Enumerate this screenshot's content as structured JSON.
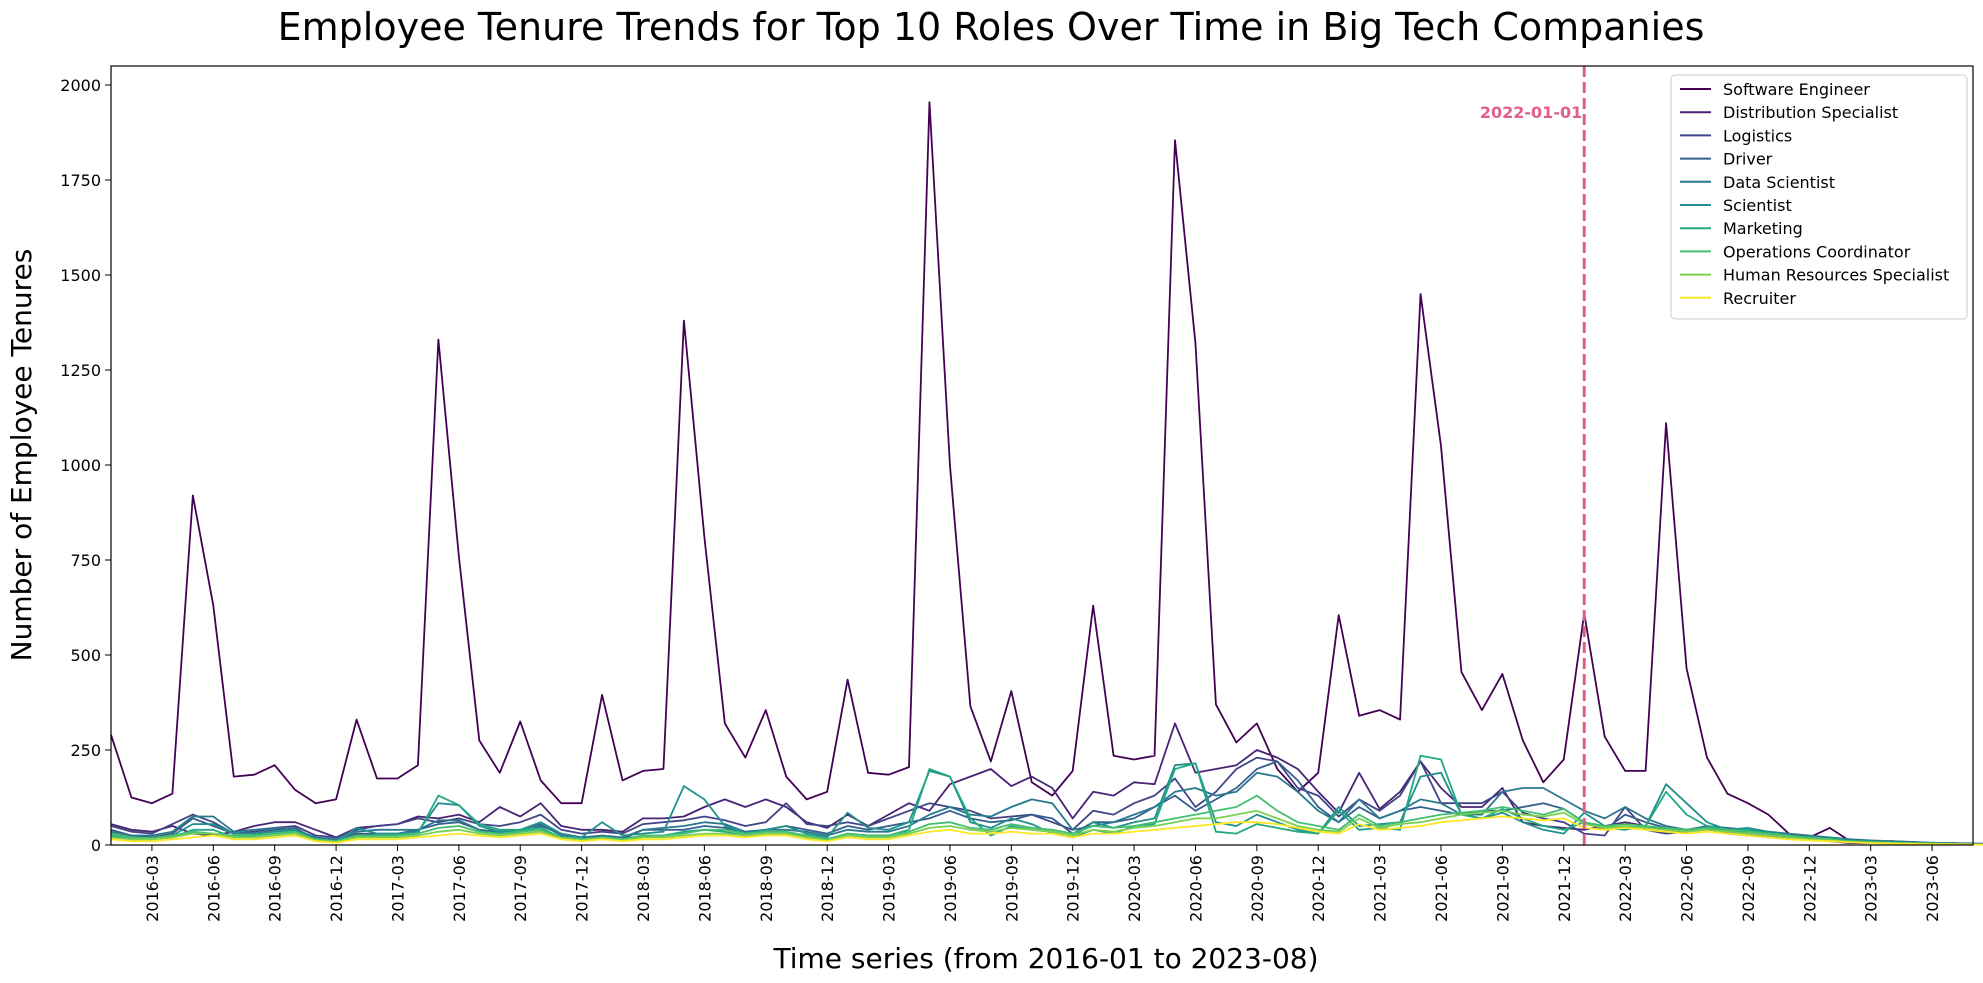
{
  "chart_data": {
    "type": "line",
    "title": "Employee Tenure Trends for Top 10 Roles Over Time in Big Tech Companies",
    "xlabel": "Time series (from 2016-01 to 2023-08)",
    "ylabel": "Number of Employee Tenures",
    "x_start": "2016-01",
    "x_end": "2023-08",
    "ylim": [
      0,
      2050
    ],
    "yticks": [
      0,
      250,
      500,
      750,
      1000,
      1250,
      1500,
      1750,
      2000
    ],
    "xticks": [
      "2016-03",
      "2016-06",
      "2016-09",
      "2016-12",
      "2017-03",
      "2017-06",
      "2017-09",
      "2017-12",
      "2018-03",
      "2018-06",
      "2018-09",
      "2018-12",
      "2019-03",
      "2019-06",
      "2019-09",
      "2019-12",
      "2020-03",
      "2020-06",
      "2020-09",
      "2020-12",
      "2021-03",
      "2021-06",
      "2021-09",
      "2021-12",
      "2022-03",
      "2022-06",
      "2022-09",
      "2022-12",
      "2023-03",
      "2023-06"
    ],
    "legend_position": "top-right",
    "grid": false,
    "annotation": {
      "x": "2022-01",
      "label": "2022-01-01",
      "color": "#e0608a"
    },
    "series": [
      {
        "name": "Software Engineer",
        "color": "#440154",
        "values": [
          290,
          125,
          110,
          135,
          920,
          630,
          180,
          185,
          210,
          145,
          110,
          120,
          330,
          175,
          175,
          210,
          1330,
          760,
          275,
          190,
          325,
          170,
          110,
          110,
          395,
          170,
          195,
          200,
          1380,
          810,
          320,
          230,
          355,
          180,
          120,
          140,
          435,
          190,
          185,
          205,
          1955,
          1000,
          365,
          220,
          405,
          165,
          130,
          195,
          630,
          235,
          225,
          235,
          1855,
          1320,
          370,
          270,
          320,
          200,
          140,
          190,
          605,
          340,
          355,
          330,
          1450,
          1050,
          455,
          355,
          450,
          275,
          165,
          225,
          610,
          285,
          195,
          195,
          1110,
          465,
          230,
          135,
          110,
          80,
          30,
          20,
          45,
          10,
          10,
          8,
          5,
          5,
          3,
          2
        ]
      },
      {
        "name": "Distribution Specialist",
        "color": "#482475",
        "values": [
          55,
          40,
          35,
          50,
          30,
          25,
          35,
          50,
          60,
          60,
          40,
          20,
          45,
          50,
          55,
          75,
          70,
          80,
          60,
          100,
          75,
          110,
          50,
          40,
          40,
          35,
          70,
          70,
          75,
          100,
          120,
          100,
          120,
          100,
          60,
          45,
          80,
          50,
          80,
          110,
          90,
          160,
          180,
          200,
          155,
          180,
          150,
          70,
          140,
          130,
          165,
          160,
          320,
          190,
          200,
          210,
          250,
          230,
          200,
          140,
          85,
          190,
          95,
          140,
          220,
          150,
          100,
          100,
          150,
          60,
          50,
          45,
          40,
          50,
          60,
          50,
          40,
          35,
          50,
          30,
          25,
          20,
          20,
          15,
          10,
          5,
          5,
          10,
          8,
          5,
          5,
          4,
          3,
          2
        ]
      },
      {
        "name": "Logistics",
        "color": "#414487",
        "values": [
          50,
          35,
          30,
          55,
          80,
          60,
          30,
          35,
          45,
          50,
          25,
          20,
          40,
          50,
          55,
          70,
          60,
          70,
          55,
          50,
          60,
          80,
          40,
          30,
          35,
          30,
          55,
          60,
          65,
          75,
          65,
          50,
          60,
          110,
          55,
          50,
          60,
          50,
          70,
          90,
          110,
          100,
          90,
          70,
          75,
          80,
          60,
          40,
          90,
          80,
          110,
          130,
          175,
          100,
          140,
          200,
          230,
          220,
          150,
          130,
          75,
          120,
          90,
          130,
          220,
          110,
          110,
          110,
          140,
          85,
          70,
          60,
          30,
          25,
          100,
          40,
          30,
          35,
          50,
          40,
          30,
          20,
          25,
          20,
          15,
          8,
          5,
          10,
          5,
          5,
          3,
          2,
          1,
          0
        ]
      },
      {
        "name": "Driver",
        "color": "#355f8d",
        "values": [
          40,
          25,
          20,
          30,
          70,
          50,
          30,
          30,
          40,
          45,
          15,
          10,
          30,
          30,
          30,
          40,
          55,
          60,
          40,
          30,
          35,
          50,
          30,
          20,
          20,
          15,
          40,
          40,
          40,
          50,
          45,
          30,
          40,
          50,
          40,
          30,
          50,
          40,
          50,
          60,
          70,
          90,
          70,
          60,
          65,
          80,
          70,
          30,
          60,
          60,
          70,
          100,
          130,
          90,
          120,
          150,
          200,
          220,
          170,
          100,
          60,
          100,
          70,
          90,
          100,
          90,
          80,
          90,
          90,
          100,
          110,
          95,
          60,
          40,
          80,
          60,
          45,
          40,
          45,
          35,
          30,
          25,
          20,
          15,
          12,
          10,
          8,
          6,
          5,
          4,
          3,
          2,
          1,
          0
        ]
      },
      {
        "name": "Data Scientist",
        "color": "#2a788e",
        "values": [
          35,
          25,
          25,
          35,
          75,
          75,
          35,
          40,
          45,
          40,
          20,
          15,
          35,
          40,
          40,
          40,
          65,
          65,
          40,
          35,
          40,
          55,
          25,
          20,
          25,
          20,
          40,
          45,
          50,
          60,
          55,
          35,
          40,
          40,
          35,
          25,
          40,
          35,
          35,
          50,
          80,
          100,
          80,
          75,
          100,
          120,
          110,
          40,
          50,
          60,
          80,
          100,
          140,
          150,
          130,
          140,
          190,
          180,
          140,
          90,
          60,
          120,
          70,
          90,
          120,
          110,
          80,
          80,
          140,
          150,
          150,
          120,
          90,
          70,
          100,
          70,
          50,
          40,
          50,
          45,
          40,
          35,
          30,
          25,
          20,
          15,
          12,
          10,
          8,
          6,
          5,
          3,
          2,
          0
        ]
      },
      {
        "name": "Scientist",
        "color": "#21918c",
        "values": [
          30,
          20,
          15,
          25,
          55,
          55,
          30,
          30,
          35,
          40,
          15,
          10,
          45,
          30,
          30,
          35,
          110,
          105,
          50,
          35,
          40,
          60,
          30,
          20,
          60,
          25,
          30,
          35,
          155,
          120,
          50,
          30,
          40,
          50,
          30,
          20,
          85,
          45,
          40,
          60,
          195,
          180,
          60,
          45,
          70,
          55,
          30,
          20,
          60,
          45,
          60,
          70,
          210,
          215,
          60,
          50,
          80,
          60,
          40,
          30,
          100,
          50,
          55,
          60,
          180,
          190,
          80,
          70,
          85,
          60,
          40,
          30,
          85,
          50,
          45,
          50,
          160,
          110,
          60,
          40,
          45,
          35,
          25,
          15,
          20,
          10,
          10,
          8,
          5,
          5,
          3,
          2,
          1,
          0
        ]
      },
      {
        "name": "Marketing",
        "color": "#22a884",
        "values": [
          25,
          15,
          15,
          20,
          40,
          40,
          20,
          25,
          30,
          35,
          15,
          10,
          25,
          25,
          25,
          30,
          130,
          105,
          55,
          40,
          40,
          45,
          20,
          10,
          20,
          15,
          25,
          25,
          35,
          40,
          35,
          25,
          30,
          30,
          25,
          15,
          30,
          25,
          25,
          40,
          200,
          180,
          70,
          25,
          50,
          40,
          35,
          20,
          40,
          30,
          50,
          55,
          200,
          215,
          35,
          30,
          55,
          45,
          35,
          30,
          90,
          40,
          45,
          40,
          235,
          225,
          80,
          70,
          95,
          70,
          50,
          40,
          60,
          45,
          40,
          50,
          140,
          80,
          50,
          40,
          40,
          30,
          20,
          15,
          15,
          10,
          8,
          6,
          5,
          4,
          3,
          2,
          1,
          0
        ]
      },
      {
        "name": "Operations Coordinator",
        "color": "#44bf70",
        "values": [
          30,
          20,
          18,
          25,
          35,
          30,
          25,
          25,
          30,
          35,
          15,
          10,
          25,
          25,
          25,
          30,
          45,
          50,
          35,
          30,
          35,
          40,
          20,
          15,
          20,
          15,
          25,
          25,
          30,
          40,
          40,
          30,
          35,
          35,
          25,
          15,
          30,
          25,
          25,
          35,
          55,
          60,
          45,
          40,
          55,
          45,
          40,
          30,
          50,
          45,
          50,
          60,
          70,
          80,
          90,
          100,
          130,
          90,
          60,
          50,
          40,
          80,
          50,
          60,
          70,
          80,
          85,
          90,
          100,
          90,
          80,
          95,
          60,
          50,
          55,
          50,
          45,
          40,
          45,
          40,
          35,
          30,
          25,
          20,
          15,
          10,
          8,
          6,
          5,
          4,
          3,
          2,
          1,
          0
        ]
      },
      {
        "name": "Human Resources Specialist",
        "color": "#7ad151",
        "values": [
          20,
          15,
          15,
          20,
          30,
          30,
          20,
          20,
          25,
          30,
          12,
          8,
          20,
          20,
          20,
          25,
          35,
          40,
          30,
          25,
          30,
          35,
          18,
          12,
          18,
          12,
          20,
          20,
          25,
          30,
          30,
          25,
          30,
          30,
          20,
          12,
          25,
          20,
          20,
          30,
          45,
          50,
          40,
          35,
          45,
          40,
          35,
          25,
          40,
          35,
          45,
          50,
          60,
          70,
          70,
          80,
          90,
          70,
          50,
          40,
          35,
          70,
          45,
          55,
          60,
          70,
          80,
          85,
          90,
          80,
          75,
          85,
          55,
          45,
          50,
          45,
          40,
          35,
          40,
          35,
          30,
          25,
          20,
          15,
          12,
          8,
          6,
          5,
          4,
          3,
          2,
          1,
          1,
          0
        ]
      },
      {
        "name": "Recruiter",
        "color": "#fde725",
        "values": [
          15,
          10,
          10,
          15,
          20,
          25,
          15,
          15,
          20,
          25,
          10,
          6,
          15,
          15,
          15,
          20,
          25,
          30,
          25,
          20,
          25,
          30,
          15,
          10,
          15,
          10,
          15,
          15,
          20,
          25,
          25,
          20,
          25,
          25,
          15,
          10,
          20,
          15,
          15,
          25,
          35,
          40,
          30,
          30,
          35,
          30,
          30,
          20,
          30,
          30,
          35,
          40,
          45,
          50,
          55,
          60,
          60,
          55,
          45,
          35,
          30,
          55,
          40,
          45,
          50,
          60,
          65,
          70,
          75,
          70,
          65,
          70,
          45,
          40,
          45,
          40,
          35,
          30,
          35,
          30,
          25,
          20,
          15,
          12,
          10,
          7,
          5,
          4,
          3,
          2,
          2,
          1,
          1,
          0
        ]
      }
    ]
  }
}
